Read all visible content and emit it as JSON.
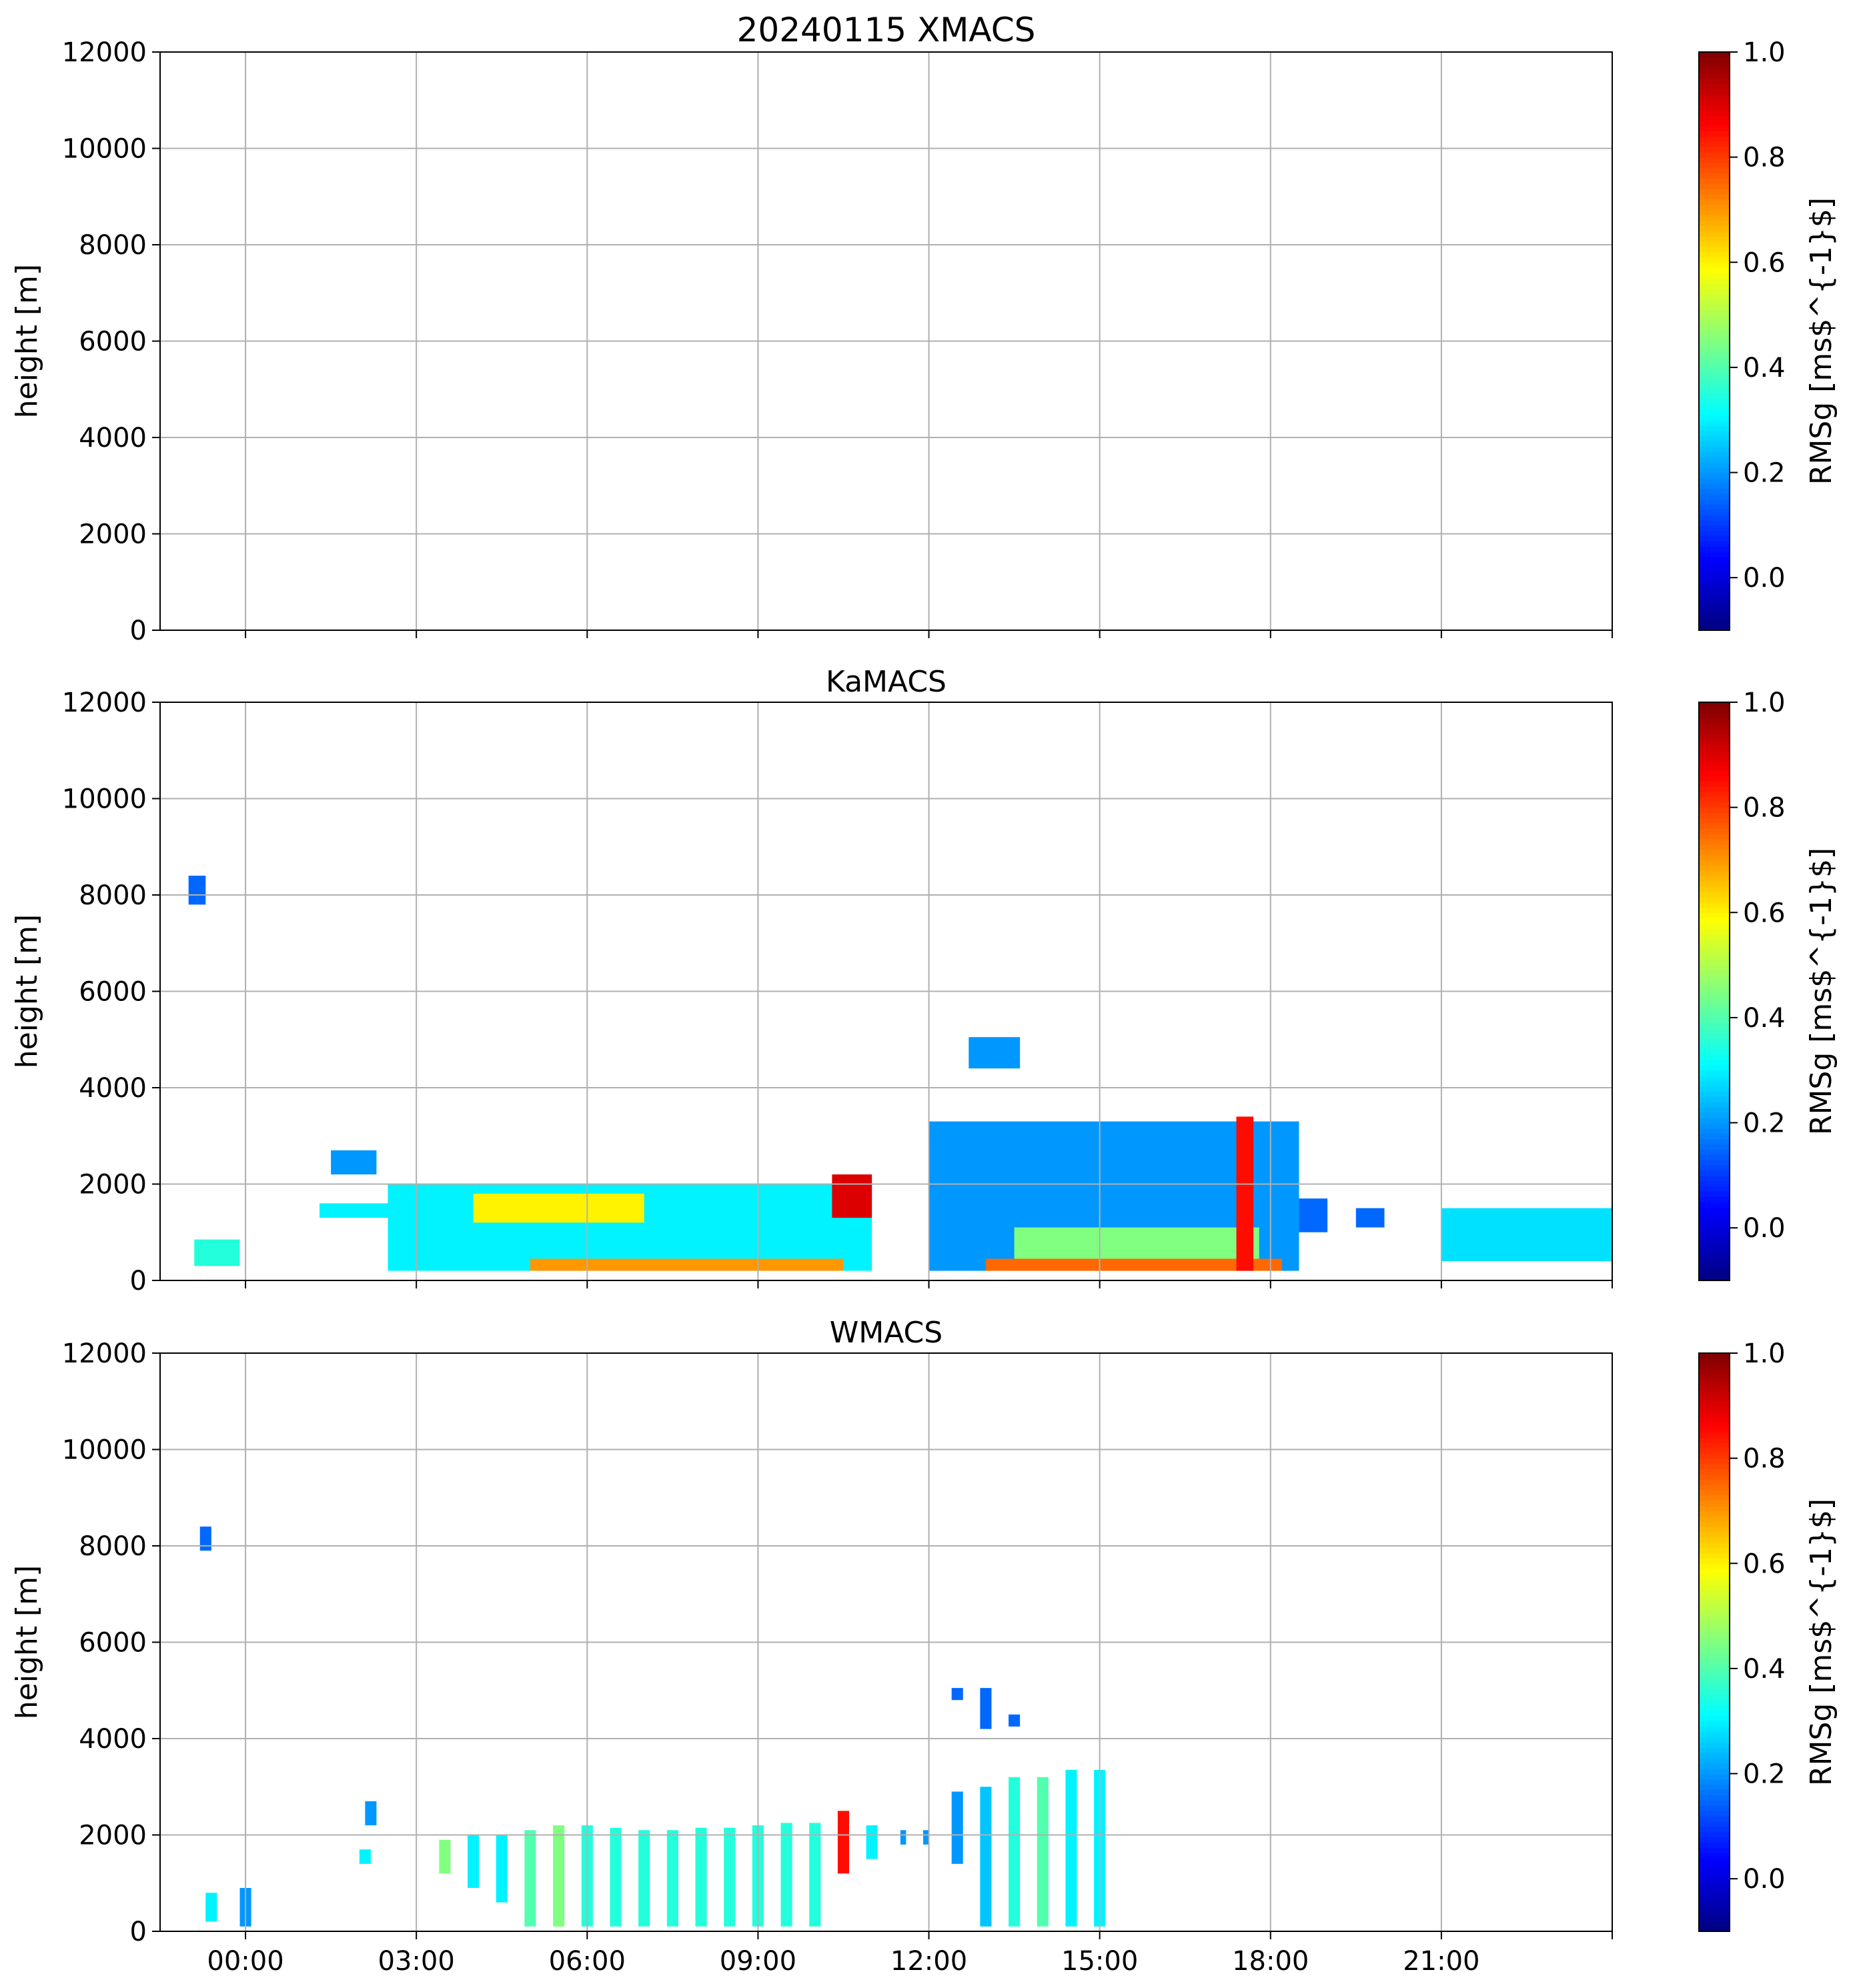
{
  "chart_data": [
    {
      "type": "heatmap",
      "title": "20240115 XMACS",
      "ylabel": "height [m]",
      "ylim": [
        0,
        12000
      ],
      "yticks": [
        "0",
        "2000",
        "4000",
        "6000",
        "8000",
        "10000",
        "12000"
      ],
      "xlim_hours": [
        -1.5,
        24
      ],
      "xticks": [],
      "grid": true,
      "colorbar": {
        "label": "RMSg [ms$^{-1}$]",
        "range": [
          -0.1,
          1.0
        ],
        "ticks": [
          "0.0",
          "0.2",
          "0.4",
          "0.6",
          "0.8",
          "1.0"
        ]
      },
      "regions": []
    },
    {
      "type": "heatmap",
      "title": "KaMACS",
      "ylabel": "height [m]",
      "ylim": [
        0,
        12000
      ],
      "yticks": [
        "0",
        "2000",
        "4000",
        "6000",
        "8000",
        "10000",
        "12000"
      ],
      "xlim_hours": [
        -1.5,
        24
      ],
      "xticks": [],
      "grid": true,
      "colorbar": {
        "label": "RMSg [ms$^{-1}$]",
        "range": [
          -0.1,
          1.0
        ],
        "ticks": [
          "0.0",
          "0.2",
          "0.4",
          "0.6",
          "0.8",
          "1.0"
        ]
      },
      "regions": [
        {
          "x0": -0.9,
          "x1": -0.1,
          "y0": 300,
          "y1": 850,
          "value": 0.35
        },
        {
          "x0": -1.0,
          "x1": -0.7,
          "y0": 7800,
          "y1": 8400,
          "value": 0.15
        },
        {
          "x0": 1.5,
          "x1": 2.3,
          "y0": 2200,
          "y1": 2700,
          "value": 0.2
        },
        {
          "x0": 1.3,
          "x1": 2.5,
          "y0": 1300,
          "y1": 1600,
          "value": 0.3
        },
        {
          "x0": 2.5,
          "x1": 11.0,
          "y0": 200,
          "y1": 2000,
          "value": 0.3
        },
        {
          "x0": 4.0,
          "x1": 7.0,
          "y0": 1200,
          "y1": 1800,
          "value": 0.6
        },
        {
          "x0": 5.0,
          "x1": 10.5,
          "y0": 200,
          "y1": 450,
          "value": 0.7
        },
        {
          "x0": 10.3,
          "x1": 11.0,
          "y0": 1300,
          "y1": 2200,
          "value": 0.9
        },
        {
          "x0": 12.7,
          "x1": 13.6,
          "y0": 4400,
          "y1": 5050,
          "value": 0.2
        },
        {
          "x0": 12.0,
          "x1": 18.5,
          "y0": 200,
          "y1": 3300,
          "value": 0.2
        },
        {
          "x0": 13.5,
          "x1": 17.8,
          "y0": 200,
          "y1": 1100,
          "value": 0.45
        },
        {
          "x0": 13.0,
          "x1": 18.2,
          "y0": 200,
          "y1": 450,
          "value": 0.75
        },
        {
          "x0": 17.4,
          "x1": 17.7,
          "y0": 200,
          "y1": 3400,
          "value": 0.85
        },
        {
          "x0": 18.5,
          "x1": 19.0,
          "y0": 1000,
          "y1": 1700,
          "value": 0.15
        },
        {
          "x0": 19.5,
          "x1": 20.0,
          "y0": 1100,
          "y1": 1500,
          "value": 0.15
        },
        {
          "x0": 21.0,
          "x1": 24.0,
          "y0": 400,
          "y1": 1500,
          "value": 0.28
        }
      ]
    },
    {
      "type": "heatmap",
      "title": "WMACS",
      "ylabel": "height [m]",
      "ylim": [
        0,
        12000
      ],
      "yticks": [
        "0",
        "2000",
        "4000",
        "6000",
        "8000",
        "10000",
        "12000"
      ],
      "xlim_hours": [
        -1.5,
        24
      ],
      "xticks": [
        "00:00",
        "03:00",
        "06:00",
        "09:00",
        "12:00",
        "15:00",
        "18:00",
        "21:00"
      ],
      "grid": true,
      "colorbar": {
        "label": "RMSg [ms$^{-1}$]",
        "range": [
          -0.1,
          1.0
        ],
        "ticks": [
          "0.0",
          "0.2",
          "0.4",
          "0.6",
          "0.8",
          "1.0"
        ]
      },
      "regions": [
        {
          "x0": -0.7,
          "x1": -0.5,
          "y0": 200,
          "y1": 800,
          "value": 0.3
        },
        {
          "x0": -0.1,
          "x1": 0.1,
          "y0": 100,
          "y1": 900,
          "value": 0.2
        },
        {
          "x0": -0.8,
          "x1": -0.6,
          "y0": 7900,
          "y1": 8400,
          "value": 0.15
        },
        {
          "x0": 2.1,
          "x1": 2.3,
          "y0": 2200,
          "y1": 2700,
          "value": 0.2
        },
        {
          "x0": 2.0,
          "x1": 2.2,
          "y0": 1400,
          "y1": 1700,
          "value": 0.3
        },
        {
          "x0": 3.4,
          "x1": 3.6,
          "y0": 1200,
          "y1": 1900,
          "value": 0.45
        },
        {
          "x0": 3.9,
          "x1": 4.1,
          "y0": 900,
          "y1": 2000,
          "value": 0.3
        },
        {
          "x0": 4.4,
          "x1": 4.6,
          "y0": 600,
          "y1": 2000,
          "value": 0.3
        },
        {
          "x0": 4.9,
          "x1": 5.1,
          "y0": 100,
          "y1": 2100,
          "value": 0.4
        },
        {
          "x0": 5.4,
          "x1": 5.6,
          "y0": 100,
          "y1": 2200,
          "value": 0.45
        },
        {
          "x0": 5.9,
          "x1": 6.1,
          "y0": 100,
          "y1": 2200,
          "value": 0.35
        },
        {
          "x0": 6.4,
          "x1": 6.6,
          "y0": 100,
          "y1": 2150,
          "value": 0.35
        },
        {
          "x0": 6.9,
          "x1": 7.1,
          "y0": 100,
          "y1": 2100,
          "value": 0.35
        },
        {
          "x0": 7.4,
          "x1": 7.6,
          "y0": 100,
          "y1": 2100,
          "value": 0.35
        },
        {
          "x0": 7.9,
          "x1": 8.1,
          "y0": 100,
          "y1": 2150,
          "value": 0.35
        },
        {
          "x0": 8.4,
          "x1": 8.6,
          "y0": 100,
          "y1": 2150,
          "value": 0.35
        },
        {
          "x0": 8.9,
          "x1": 9.1,
          "y0": 100,
          "y1": 2200,
          "value": 0.35
        },
        {
          "x0": 9.4,
          "x1": 9.6,
          "y0": 100,
          "y1": 2250,
          "value": 0.35
        },
        {
          "x0": 9.9,
          "x1": 10.1,
          "y0": 100,
          "y1": 2250,
          "value": 0.35
        },
        {
          "x0": 10.4,
          "x1": 10.6,
          "y0": 1200,
          "y1": 2500,
          "value": 0.85
        },
        {
          "x0": 10.9,
          "x1": 11.1,
          "y0": 1500,
          "y1": 2200,
          "value": 0.3
        },
        {
          "x0": 11.5,
          "x1": 11.6,
          "y0": 1800,
          "y1": 2100,
          "value": 0.2
        },
        {
          "x0": 11.9,
          "x1": 12.0,
          "y0": 1800,
          "y1": 2100,
          "value": 0.2
        },
        {
          "x0": 12.4,
          "x1": 12.6,
          "y0": 1400,
          "y1": 2900,
          "value": 0.2
        },
        {
          "x0": 12.4,
          "x1": 12.6,
          "y0": 4800,
          "y1": 5050,
          "value": 0.15
        },
        {
          "x0": 12.9,
          "x1": 13.1,
          "y0": 100,
          "y1": 3000,
          "value": 0.25
        },
        {
          "x0": 12.9,
          "x1": 13.1,
          "y0": 4200,
          "y1": 5050,
          "value": 0.15
        },
        {
          "x0": 13.4,
          "x1": 13.6,
          "y0": 100,
          "y1": 3200,
          "value": 0.35
        },
        {
          "x0": 13.4,
          "x1": 13.6,
          "y0": 4250,
          "y1": 4500,
          "value": 0.15
        },
        {
          "x0": 13.9,
          "x1": 14.1,
          "y0": 100,
          "y1": 3200,
          "value": 0.4
        },
        {
          "x0": 14.4,
          "x1": 14.6,
          "y0": 100,
          "y1": 3350,
          "value": 0.3
        },
        {
          "x0": 14.9,
          "x1": 15.1,
          "y0": 100,
          "y1": 3350,
          "value": 0.3
        }
      ]
    }
  ]
}
